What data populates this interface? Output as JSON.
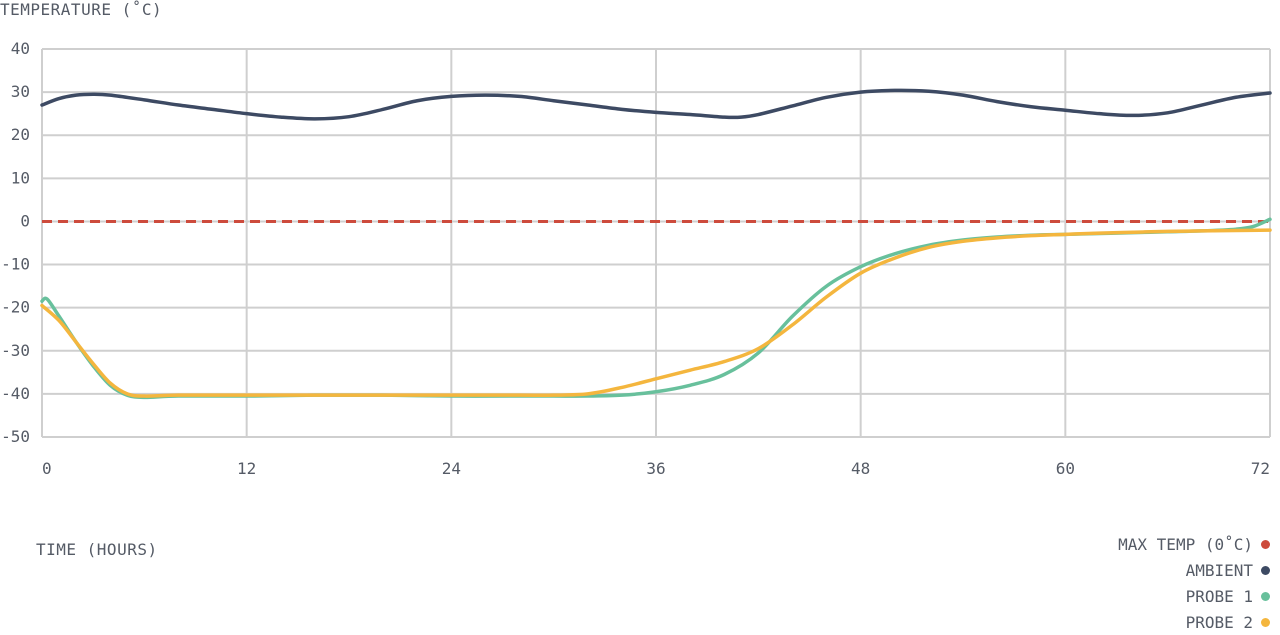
{
  "chart_data": {
    "type": "line",
    "ylabel": "TEMPERATURE (˚C)",
    "xlabel": "TIME (HOURS)",
    "xlim": [
      0,
      72
    ],
    "ylim": [
      -50,
      40
    ],
    "xticks": [
      0,
      12,
      24,
      36,
      48,
      60,
      72
    ],
    "yticks": [
      -50,
      -40,
      -30,
      -20,
      -10,
      0,
      10,
      20,
      30,
      40
    ],
    "grid": true,
    "legend_position": "bottom-right",
    "threshold": {
      "name": "MAX TEMP (0˚C)",
      "value": 0,
      "color": "#cd4b3c",
      "style": "dashed"
    },
    "series": [
      {
        "name": "AMBIENT",
        "color": "#3d4a63",
        "x": [
          0,
          1,
          2,
          3,
          4,
          6,
          8,
          10,
          12,
          14,
          16,
          18,
          20,
          22,
          24,
          26,
          28,
          30,
          32,
          34,
          36,
          38,
          40,
          41,
          42,
          44,
          46,
          48,
          50,
          52,
          54,
          56,
          58,
          60,
          62,
          64,
          66,
          68,
          70,
          72
        ],
        "y": [
          27,
          28.5,
          29.3,
          29.5,
          29.3,
          28.2,
          27,
          26,
          25,
          24.2,
          23.8,
          24.3,
          26,
          28,
          29,
          29.3,
          29,
          28,
          27,
          26,
          25.3,
          24.8,
          24.2,
          24.2,
          24.8,
          26.8,
          28.8,
          30,
          30.4,
          30.2,
          29.3,
          27.8,
          26.6,
          25.8,
          25,
          24.6,
          25.2,
          27,
          28.8,
          29.8
        ]
      },
      {
        "name": "PROBE 1",
        "color": "#68c09c",
        "x": [
          0,
          0.3,
          1,
          2,
          3,
          4,
          5,
          6,
          8,
          12,
          16,
          20,
          24,
          28,
          30,
          32,
          34,
          36,
          38,
          40,
          42,
          44,
          46,
          48,
          50,
          52,
          54,
          56,
          58,
          60,
          62,
          64,
          66,
          68,
          70,
          71,
          72
        ],
        "y": [
          -18.5,
          -18,
          -22,
          -28,
          -33.5,
          -38,
          -40.3,
          -40.8,
          -40.5,
          -40.5,
          -40.3,
          -40.3,
          -40.5,
          -40.5,
          -40.5,
          -40.5,
          -40.3,
          -39.5,
          -38,
          -35.5,
          -30.5,
          -22,
          -15,
          -10.5,
          -7.5,
          -5.5,
          -4.3,
          -3.6,
          -3.2,
          -3,
          -2.8,
          -2.6,
          -2.4,
          -2.2,
          -1.8,
          -1.2,
          0.5
        ]
      },
      {
        "name": "PROBE 2",
        "color": "#f4b63e",
        "x": [
          0,
          1,
          2,
          3,
          4,
          5,
          6,
          8,
          12,
          16,
          20,
          24,
          28,
          30,
          32,
          34,
          36,
          38,
          40,
          42,
          44,
          46,
          48,
          50,
          52,
          54,
          56,
          58,
          60,
          62,
          64,
          66,
          68,
          70,
          72
        ],
        "y": [
          -19.5,
          -23,
          -28,
          -33,
          -37.5,
          -40,
          -40.5,
          -40.3,
          -40.3,
          -40.3,
          -40.3,
          -40.3,
          -40.3,
          -40.3,
          -40,
          -38.5,
          -36.5,
          -34.5,
          -32.5,
          -29.5,
          -24,
          -17.5,
          -12,
          -8.5,
          -6,
          -4.6,
          -3.8,
          -3.3,
          -3,
          -2.7,
          -2.5,
          -2.3,
          -2.2,
          -2.1,
          -2
        ]
      }
    ]
  }
}
